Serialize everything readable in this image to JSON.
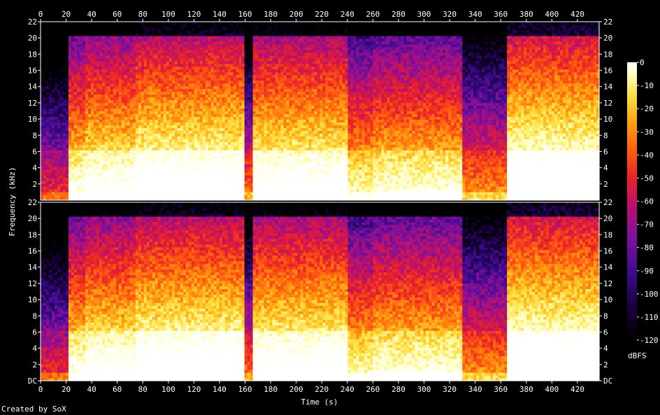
{
  "chart_data": {
    "type": "heatmap",
    "title": "",
    "xlabel": "Time (s)",
    "ylabel": "Frequency (kHz)",
    "xlim": [
      0,
      437
    ],
    "ylim": [
      0,
      22
    ],
    "x_ticks": [
      0,
      20,
      40,
      60,
      80,
      100,
      120,
      140,
      160,
      180,
      200,
      220,
      240,
      260,
      280,
      300,
      320,
      340,
      360,
      380,
      400,
      420
    ],
    "y_tick_labels_upper": [
      "2",
      "4",
      "6",
      "8",
      "10",
      "12",
      "14",
      "16",
      "18",
      "20",
      "22"
    ],
    "y_tick_labels_lower": [
      "DC",
      "2",
      "4",
      "6",
      "8",
      "10",
      "12",
      "14",
      "16",
      "18",
      "20",
      "22"
    ],
    "channels": 2,
    "colorbar": {
      "label": "dBFS",
      "ticks": [
        "0",
        "-10",
        "-20",
        "-30",
        "-40",
        "-50",
        "-60",
        "-70",
        "-80",
        "-90",
        "-100",
        "-110",
        "-120"
      ],
      "range": [
        -120,
        0
      ]
    },
    "colormap": [
      "#000000",
      "#1a0040",
      "#3c0a8c",
      "#7a109e",
      "#b81070",
      "#e8202a",
      "#ff5a10",
      "#ffa010",
      "#ffe040",
      "#ffffc0",
      "#ffffff"
    ],
    "segments": [
      {
        "start": 0,
        "end": 21,
        "level": 0.2
      },
      {
        "start": 21,
        "end": 35,
        "level": 0.62
      },
      {
        "start": 35,
        "end": 75,
        "level": 0.68
      },
      {
        "start": 75,
        "end": 160,
        "level": 0.75
      },
      {
        "start": 160,
        "end": 166,
        "level": 0.3
      },
      {
        "start": 166,
        "end": 240,
        "level": 0.72
      },
      {
        "start": 240,
        "end": 260,
        "level": 0.55
      },
      {
        "start": 260,
        "end": 330,
        "level": 0.6
      },
      {
        "start": 330,
        "end": 364,
        "level": 0.35
      },
      {
        "start": 364,
        "end": 437,
        "level": 0.8
      }
    ]
  },
  "footer": {
    "credit": "Created by SoX"
  }
}
